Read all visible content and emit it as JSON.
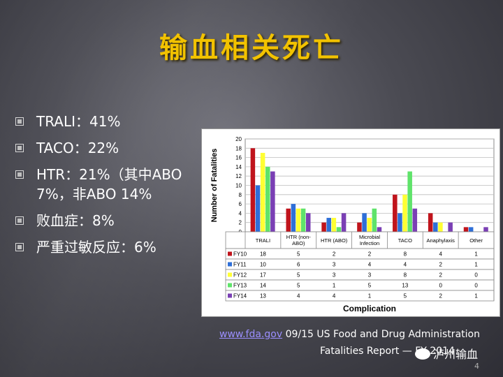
{
  "slide": {
    "title": "输血相关死亡",
    "bullets": [
      "TRALI：41%",
      "TACO：22%",
      "HTR：21%（其中ABO 7%，非ABO 14%",
      "败血症：8%",
      "严重过敏反应：6%"
    ],
    "source_link": "www.fda.gov",
    "source_date": "09/15",
    "source_line1": "US Food and Drug Administration",
    "source_line2": "Fatalities Report — FY 2014",
    "watermark": "泸州输血",
    "page_number": "4"
  },
  "chart_data": {
    "type": "bar",
    "categories": [
      "TRALI",
      "HTR (non-ABO)",
      "HTR (ABO)",
      "Microbial Infection",
      "TACO",
      "Anaphylaxis",
      "Other"
    ],
    "category_lines": [
      [
        "TRALI"
      ],
      [
        "HTR (non-",
        "ABO)"
      ],
      [
        "HTR (ABO)"
      ],
      [
        "Microbial",
        "Infection"
      ],
      [
        "TACO"
      ],
      [
        "Anaphylaxis"
      ],
      [
        "Other"
      ]
    ],
    "series": [
      {
        "name": "FY10",
        "color": "#c0141c",
        "values": [
          18,
          5,
          2,
          2,
          8,
          4,
          1
        ]
      },
      {
        "name": "FY11",
        "color": "#2e6fd8",
        "values": [
          10,
          6,
          3,
          4,
          4,
          2,
          1
        ]
      },
      {
        "name": "FY12",
        "color": "#ffff33",
        "values": [
          17,
          5,
          3,
          3,
          8,
          2,
          0
        ]
      },
      {
        "name": "FY13",
        "color": "#5fe36a",
        "values": [
          14,
          5,
          1,
          5,
          13,
          0,
          0
        ]
      },
      {
        "name": "FY14",
        "color": "#7a3fb4",
        "values": [
          13,
          4,
          4,
          1,
          5,
          2,
          1
        ]
      }
    ],
    "ylabel": "Number of Fatalities",
    "xlabel": "Complication",
    "ylim": [
      0,
      20
    ],
    "yticks": [
      0,
      2,
      4,
      6,
      8,
      10,
      12,
      14,
      16,
      18,
      20
    ],
    "grid": true,
    "legend": "data-table"
  }
}
